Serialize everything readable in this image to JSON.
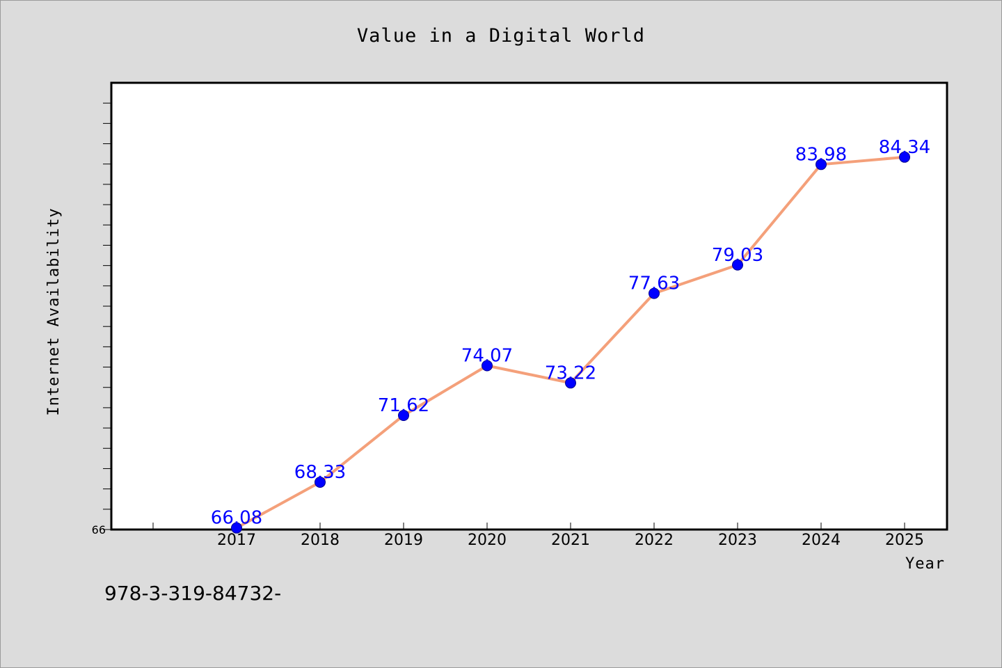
{
  "chart_data": {
    "type": "line",
    "title": "Value in a Digital World",
    "xlabel": "Year",
    "ylabel": "Internet Availability",
    "categories": [
      "2017",
      "2018",
      "2019",
      "2020",
      "2021",
      "2022",
      "2023",
      "2024",
      "2025"
    ],
    "series": [
      {
        "values": [
          66.08,
          68.33,
          71.62,
          74.07,
          73.22,
          77.63,
          79.03,
          83.98,
          84.34
        ],
        "line_color": "#f4a07a",
        "marker_color": "#0000ff",
        "label_color": "#0000ff"
      }
    ],
    "y_tick_labels": [
      "66"
    ],
    "ylim": [
      66,
      88
    ],
    "grid": false,
    "legend": "none",
    "background_color": "#dcdcdc",
    "plot_background_color": "#ffffff"
  },
  "footer": {
    "text": "978-3-319-84732-"
  }
}
